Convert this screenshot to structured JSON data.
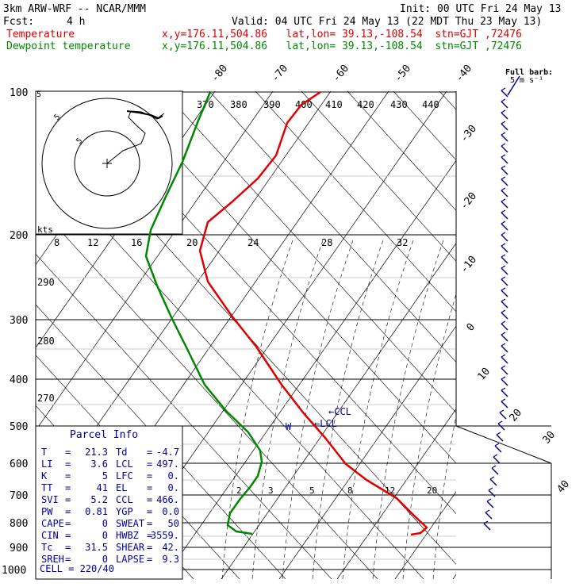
{
  "header": {
    "model": "3km ARW-WRF -- NCAR/MMM",
    "init": "Init: 00 UTC Fri 24 May 13",
    "fcst_label": "Fcst:",
    "fcst_value": "4 h",
    "valid": "Valid: 04 UTC Fri 24 May 13 (22 MDT Thu 23 May 13)",
    "temp_legend": "Temperature",
    "temp_loc": "x,y=176.11,504.86   lat,lon= 39.13,-108.54  stn=GJT ,72476",
    "dew_legend": "Dewpoint temperature",
    "dew_loc": "x,y=176.11,504.86   lat,lon= 39.13,-108.54  stn=GJT ,72476"
  },
  "wind_header": {
    "title": "Full barb:",
    "unit": "5 m s⁻¹"
  },
  "chart_data": {
    "type": "skew-t",
    "pressure_levels": [
      "100",
      "200",
      "300",
      "400",
      "500",
      "600",
      "700",
      "800",
      "900",
      "1000"
    ],
    "isotherm_labels_top": [
      "-80",
      "-70",
      "-60",
      "-50",
      "-40"
    ],
    "isotherm_labels_right": [
      "-30",
      "-20",
      "-10",
      "0",
      "10",
      "20",
      "30",
      "40"
    ],
    "theta_e_labels": [
      "370",
      "380",
      "390",
      "400",
      "410",
      "420",
      "430",
      "440"
    ],
    "theta_labels": [
      "290",
      "280",
      "270"
    ],
    "mixing_ratio_labels": [
      "2",
      "3",
      "5",
      "8",
      "12",
      "20"
    ],
    "hodograph": {
      "unit_label": "kts",
      "ring_labels": [
        "5",
        "5",
        "5"
      ],
      "speed_labels": [
        "8",
        "12",
        "16",
        "20",
        "24",
        "28",
        "32"
      ]
    },
    "series": [
      {
        "name": "Temperature",
        "color": "#e00000",
        "points": [
          [
            404,
            116
          ],
          [
            380,
            132
          ],
          [
            362,
            155
          ],
          [
            348,
            196
          ],
          [
            325,
            225
          ],
          [
            292,
            255
          ],
          [
            262,
            280
          ],
          [
            252,
            316
          ],
          [
            262,
            355
          ],
          [
            292,
            398
          ],
          [
            323,
            437
          ],
          [
            355,
            485
          ],
          [
            382,
            520
          ],
          [
            410,
            552
          ],
          [
            436,
            585
          ],
          [
            462,
            605
          ],
          [
            500,
            628
          ],
          [
            522,
            650
          ],
          [
            538,
            665
          ],
          [
            530,
            672
          ],
          [
            518,
            674
          ]
        ]
      },
      {
        "name": "Dewpoint temperature",
        "color": "#008800",
        "points": [
          [
            265,
            116
          ],
          [
            250,
            152
          ],
          [
            230,
            204
          ],
          [
            208,
            250
          ],
          [
            190,
            290
          ],
          [
            184,
            323
          ],
          [
            198,
            360
          ],
          [
            216,
            400
          ],
          [
            236,
            440
          ],
          [
            258,
            485
          ],
          [
            285,
            518
          ],
          [
            313,
            545
          ],
          [
            328,
            568
          ],
          [
            330,
            582
          ],
          [
            325,
            600
          ],
          [
            316,
            613
          ],
          [
            302,
            630
          ],
          [
            290,
            647
          ],
          [
            287,
            662
          ],
          [
            298,
            670
          ],
          [
            318,
            673
          ]
        ]
      }
    ],
    "markers": [
      {
        "label": "W",
        "color": "#000099"
      },
      {
        "label": "CCL",
        "color": "#000099"
      },
      {
        "label": "LCL",
        "color": "#000099"
      }
    ],
    "parcel_info": {
      "title": "Parcel Info",
      "rows": [
        {
          "k1": "T",
          "v1": "21.3",
          "k2": "Td",
          "v2": "-4.7"
        },
        {
          "k1": "LI",
          "v1": "3.6",
          "k2": "LCL",
          "v2": "497."
        },
        {
          "k1": "K",
          "v1": "5",
          "k2": "LFC",
          "v2": "0."
        },
        {
          "k1": "TT",
          "v1": "41",
          "k2": "EL",
          "v2": "0."
        },
        {
          "k1": "SVI",
          "v1": "5.2",
          "k2": "CCL",
          "v2": "466."
        },
        {
          "k1": "PW",
          "v1": "0.81",
          "k2": "YGP",
          "v2": "0.0"
        },
        {
          "k1": "CAPE",
          "v1": "0",
          "k2": "SWEAT",
          "v2": "50"
        },
        {
          "k1": "CIN",
          "v1": "0",
          "k2": "HWBZ",
          "v2": "3559."
        },
        {
          "k1": "Tc",
          "v1": "31.5",
          "k2": "SHEAR",
          "v2": "42."
        },
        {
          "k1": "SREH",
          "v1": "0",
          "k2": "LAPSE",
          "v2": "9.3"
        }
      ],
      "cell": "CELL = 220/40"
    }
  }
}
